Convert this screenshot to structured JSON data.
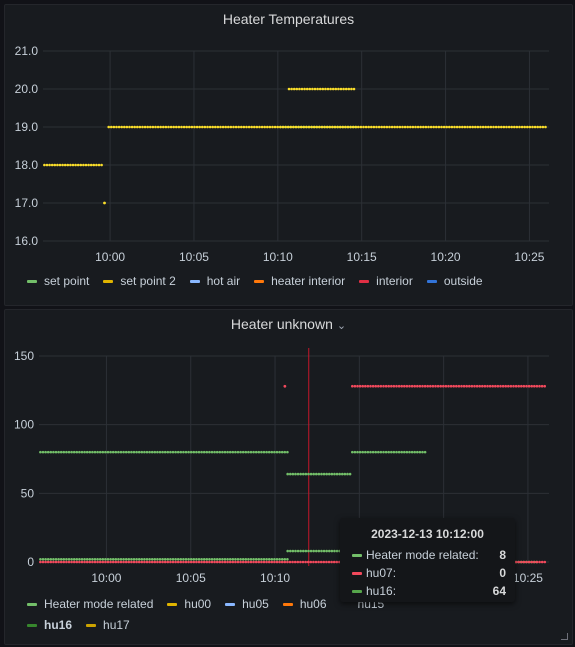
{
  "panels": {
    "top": {
      "title": "Heater Temperatures"
    },
    "bottom": {
      "title": "Heater unknown",
      "title_icon": "chevron-down-icon"
    }
  },
  "chart_data": [
    {
      "type": "scatter",
      "title": "Heater Temperatures",
      "ylim": [
        16,
        21
      ],
      "yticks": [
        "16.0",
        "17.0",
        "18.0",
        "19.0",
        "20.0",
        "21.0"
      ],
      "xticks": [
        "10:00",
        "10:05",
        "10:10",
        "10:15",
        "10:20",
        "10:25"
      ],
      "grid": true,
      "legend_position": "bottom",
      "series": [
        {
          "name": "set point",
          "color": "#73bf69",
          "values": [
            {
              "x": [
                "10:10:10",
                "10:14:40"
              ],
              "y": 19
            }
          ]
        },
        {
          "name": "set point 2",
          "color": "#fade2a",
          "values": [
            {
              "x": [
                "09:56:05",
                "09:59:35"
              ],
              "y": 18
            },
            {
              "x": [
                "09:59:40",
                "09:59:40"
              ],
              "y": 17
            },
            {
              "x": [
                "09:59:55",
                "10:26:05"
              ],
              "y": 19
            },
            {
              "x": [
                "10:10:40",
                "10:14:40"
              ],
              "y": 20
            }
          ]
        },
        {
          "name": "hot air",
          "color": "#5794f2",
          "values": []
        },
        {
          "name": "heater interior",
          "color": "#ff9830",
          "values": []
        },
        {
          "name": "interior",
          "color": "#f2495c",
          "values": []
        },
        {
          "name": "outside",
          "color": "#3274d9",
          "values": []
        }
      ],
      "legend": [
        {
          "name": "set point",
          "color": "#73bf69"
        },
        {
          "name": "set point 2",
          "color": "#e0b400"
        },
        {
          "name": "hot air",
          "color": "#8ab8ff"
        },
        {
          "name": "heater interior",
          "color": "#ff780a"
        },
        {
          "name": "interior",
          "color": "#e02f44"
        },
        {
          "name": "outside",
          "color": "#3274d9"
        }
      ]
    },
    {
      "type": "scatter",
      "title": "Heater unknown",
      "ylim": [
        0,
        150
      ],
      "yticks": [
        "0",
        "50",
        "100",
        "150"
      ],
      "xticks": [
        "10:00",
        "10:05",
        "10:10",
        "10:15",
        "10:20",
        "10:25"
      ],
      "grid": true,
      "legend_position": "bottom",
      "series": [
        {
          "name": "Heater mode related",
          "color": "#73bf69",
          "values": [
            {
              "x": [
                "09:56:05",
                "10:10:45"
              ],
              "y": 80
            },
            {
              "x": [
                "10:10:45",
                "10:14:35"
              ],
              "y": 64
            },
            {
              "x": [
                "10:14:35",
                "10:19:00"
              ],
              "y": 80
            },
            {
              "x": [
                "10:10:45",
                "10:14:35"
              ],
              "y": 8
            },
            {
              "x": [
                "09:56:05",
                "10:10:45"
              ],
              "y": 2
            },
            {
              "x": [
                "10:23:40",
                "10:25:40"
              ],
              "y": 0
            }
          ]
        },
        {
          "name": "hu07",
          "color": "#f2495c",
          "values": [
            {
              "x": [
                "10:10:35",
                "10:10:35"
              ],
              "y": 128
            },
            {
              "x": [
                "10:14:35",
                "10:26:05"
              ],
              "y": 128
            },
            {
              "x": [
                "09:56:05",
                "10:26:05"
              ],
              "y": 0
            }
          ]
        }
      ],
      "crosshair_time": "2023-12-13 10:12:00",
      "legend_rows": [
        [
          {
            "name": "Heater mode related",
            "color": "#73bf69"
          },
          {
            "name": "hu00",
            "color": "#e0b400"
          },
          {
            "name": "hu05",
            "color": "#8ab8ff"
          },
          {
            "name": "hu06",
            "color": "#ff780a"
          },
          {
            "name": "hu15",
            "color": "#181b1f"
          }
        ],
        [
          {
            "name": "hu16",
            "color": "#37872d",
            "bold": true
          },
          {
            "name": "hu17",
            "color": "#cca300"
          }
        ]
      ]
    }
  ],
  "tooltip": {
    "title": "2023-12-13 10:12:00",
    "rows": [
      {
        "label": "Heater mode related:",
        "value": "8",
        "color": "#73bf69"
      },
      {
        "label": "hu07:",
        "value": "0",
        "color": "#f2495c"
      },
      {
        "label": "hu16:",
        "value": "64",
        "color": "#56a64b"
      }
    ]
  }
}
